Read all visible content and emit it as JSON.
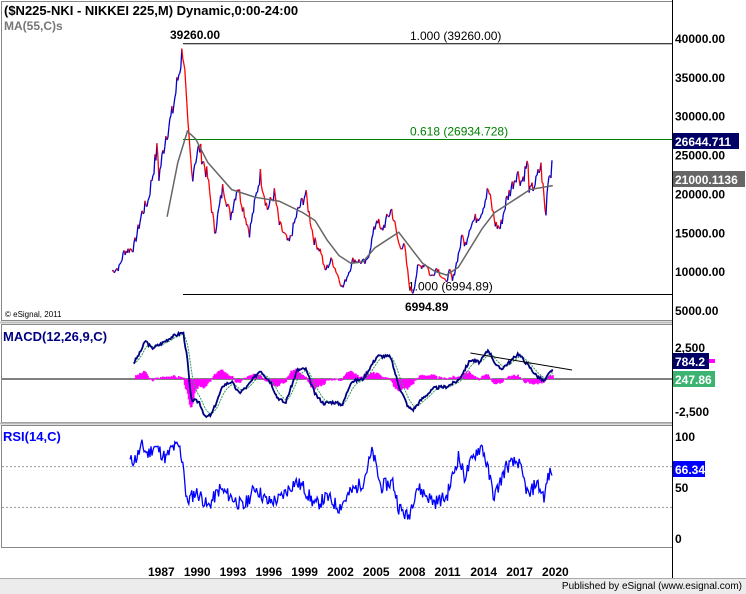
{
  "chart_data": {
    "type": "line",
    "title": "($N225-NKI - NIKKEI 225,M) Dynamic,0:00-24:00",
    "ma_label": "MA(55,C)s",
    "copyright": "© eSignal, 2011",
    "price_ylim": [
      5000,
      40000
    ],
    "price_ticks": [
      "40000.00",
      "35000.00",
      "30000.00",
      "25000.00",
      "20000.00",
      "15000.00",
      "10000.00",
      "5000.00"
    ],
    "price_tick_values": [
      40000,
      35000,
      30000,
      25000,
      20000,
      15000,
      10000,
      5000
    ],
    "x_ticks": [
      "1987",
      "1990",
      "1993",
      "1996",
      "1999",
      "2002",
      "2005",
      "2008",
      "2011",
      "2014",
      "2017",
      "2020"
    ],
    "x_range": [
      1984,
      2021
    ],
    "fib": [
      {
        "level": "1.000 (39260.00)",
        "value": 39260,
        "color": "#000000"
      },
      {
        "level": "0.618 (26934.728)",
        "value": 26934.728,
        "color": "#008000"
      },
      {
        "level": "1.000 (6994.89)",
        "value": 6994.89,
        "color": "#000000"
      }
    ],
    "high_label": "39260.00",
    "low_label": "6994.89",
    "last_price": "26644.711",
    "last_ma": "21000.1136",
    "price": [
      [
        1984.0,
        10000
      ],
      [
        1984.6,
        10500
      ],
      [
        1985,
        12500
      ],
      [
        1985.8,
        13000
      ],
      [
        1986.5,
        17500
      ],
      [
        1987.0,
        19000
      ],
      [
        1987.8,
        26000
      ],
      [
        1987.9,
        22000
      ],
      [
        1988.5,
        27500
      ],
      [
        1989.0,
        30000
      ],
      [
        1989.95,
        38900
      ],
      [
        1990.3,
        29000
      ],
      [
        1990.7,
        22000
      ],
      [
        1990.9,
        24000
      ],
      [
        1991.3,
        26000
      ],
      [
        1992.0,
        22000
      ],
      [
        1992.6,
        15000
      ],
      [
        1993.3,
        21000
      ],
      [
        1993.9,
        17000
      ],
      [
        1994.5,
        21000
      ],
      [
        1995.5,
        15000
      ],
      [
        1996.4,
        22500
      ],
      [
        1997.0,
        18000
      ],
      [
        1997.6,
        20000
      ],
      [
        1998.0,
        16000
      ],
      [
        1998.8,
        13500
      ],
      [
        1999.5,
        17500
      ],
      [
        2000.2,
        20000
      ],
      [
        2000.9,
        14000
      ],
      [
        2001.5,
        12500
      ],
      [
        2001.8,
        10000
      ],
      [
        2002.4,
        11500
      ],
      [
        2003.3,
        7800
      ],
      [
        2004.2,
        11500
      ],
      [
        2005.3,
        11000
      ],
      [
        2006.2,
        17000
      ],
      [
        2006.5,
        15000
      ],
      [
        2007.4,
        18000
      ],
      [
        2008.0,
        13500
      ],
      [
        2008.5,
        13000
      ],
      [
        2008.9,
        8000
      ],
      [
        2009.2,
        7200
      ],
      [
        2009.6,
        10500
      ],
      [
        2010.3,
        11000
      ],
      [
        2010.7,
        9200
      ],
      [
        2011.2,
        10500
      ],
      [
        2011.9,
        8500
      ],
      [
        2012.3,
        10000
      ],
      [
        2012.5,
        8700
      ],
      [
        2013.4,
        15000
      ],
      [
        2013.5,
        13000
      ],
      [
        2014.0,
        16000
      ],
      [
        2014.9,
        17500
      ],
      [
        2015.5,
        20500
      ],
      [
        2016.1,
        16000
      ],
      [
        2016.5,
        15500
      ],
      [
        2017.0,
        19000
      ],
      [
        2017.9,
        22700
      ],
      [
        2018.3,
        21500
      ],
      [
        2018.8,
        24000
      ],
      [
        2018.95,
        20000
      ],
      [
        2019.5,
        21500
      ],
      [
        2019.9,
        23600
      ],
      [
        2020.2,
        19000
      ],
      [
        2020.3,
        16500
      ],
      [
        2020.5,
        22000
      ],
      [
        2020.8,
        23000
      ],
      [
        2020.9,
        26644.711
      ]
    ],
    "ma55": [
      [
        1988.6,
        17000
      ],
      [
        1989.5,
        24000
      ],
      [
        1990.3,
        28000
      ],
      [
        1991,
        27000
      ],
      [
        1992,
        24000
      ],
      [
        1994,
        20500
      ],
      [
        1996,
        19500
      ],
      [
        1998,
        19000
      ],
      [
        2000,
        17500
      ],
      [
        2001,
        16500
      ],
      [
        2002,
        14000
      ],
      [
        2003,
        12000
      ],
      [
        2004,
        11000
      ],
      [
        2005,
        11200
      ],
      [
        2006,
        13000
      ],
      [
        2008,
        15000
      ],
      [
        2009,
        13000
      ],
      [
        2010,
        11000
      ],
      [
        2011,
        10000
      ],
      [
        2012,
        9500
      ],
      [
        2013,
        10500
      ],
      [
        2014,
        13000
      ],
      [
        2015,
        15500
      ],
      [
        2016,
        17500
      ],
      [
        2017,
        18500
      ],
      [
        2018,
        19500
      ],
      [
        2019,
        20500
      ],
      [
        2020.9,
        21000.1136
      ]
    ],
    "macd": {
      "label": "MACD(12,26,9,C)",
      "ticks": [
        "2,500",
        "-2,500"
      ],
      "tick_values": [
        2500,
        -2500
      ],
      "last_macd": "784.2",
      "last_signal": "247.86",
      "values": [
        [
          1985.8,
          1250
        ],
        [
          1986.3,
          2000
        ],
        [
          1986.8,
          3000
        ],
        [
          1987.3,
          2400
        ],
        [
          1988,
          2700
        ],
        [
          1989,
          3300
        ],
        [
          1989.95,
          3650
        ],
        [
          1990.3,
          1500
        ],
        [
          1990.6,
          -1600
        ],
        [
          1991.3,
          -1800
        ],
        [
          1991.8,
          -3000
        ],
        [
          1992.3,
          -2800
        ],
        [
          1993.3,
          -500
        ],
        [
          1994,
          -200
        ],
        [
          1994.6,
          -1100
        ],
        [
          1995.3,
          -600
        ],
        [
          1996.4,
          700
        ],
        [
          1997.3,
          -300
        ],
        [
          1997.8,
          -1400
        ],
        [
          1998.5,
          -1900
        ],
        [
          1999.5,
          700
        ],
        [
          2000.2,
          800
        ],
        [
          2001,
          -1200
        ],
        [
          2001.7,
          -1900
        ],
        [
          2002.5,
          -1800
        ],
        [
          2003.3,
          -2000
        ],
        [
          2004,
          -200
        ],
        [
          2005,
          0
        ],
        [
          2006.2,
          1800
        ],
        [
          2007.3,
          1750
        ],
        [
          2008,
          -500
        ],
        [
          2008.8,
          -2200
        ],
        [
          2009.2,
          -2400
        ],
        [
          2010,
          -1500
        ],
        [
          2011,
          -700
        ],
        [
          2012,
          -600
        ],
        [
          2013,
          -100
        ],
        [
          2014,
          1500
        ],
        [
          2014.8,
          1300
        ],
        [
          2015.5,
          2300
        ],
        [
          2016.2,
          1000
        ],
        [
          2016.6,
          800
        ],
        [
          2017.5,
          1500
        ],
        [
          2018,
          2000
        ],
        [
          2018.9,
          1000
        ],
        [
          2019.5,
          300
        ],
        [
          2020.2,
          -200
        ],
        [
          2020.5,
          300
        ],
        [
          2020.9,
          784.2
        ]
      ]
    },
    "rsi": {
      "label": "RSI(14,C)",
      "ticks": [
        "100",
        "50",
        "0"
      ],
      "tick_values": [
        100,
        50,
        0
      ],
      "levels": [
        70,
        30
      ],
      "last": "66.34",
      "values": [
        [
          1985.5,
          75
        ],
        [
          1986,
          78
        ],
        [
          1986.5,
          90
        ],
        [
          1987,
          82
        ],
        [
          1987.5,
          90
        ],
        [
          1988,
          85
        ],
        [
          1988.5,
          78
        ],
        [
          1989,
          88
        ],
        [
          1989.6,
          90
        ],
        [
          1990,
          70
        ],
        [
          1990.2,
          35
        ],
        [
          1991,
          45
        ],
        [
          1991.5,
          40
        ],
        [
          1992,
          30
        ],
        [
          1993,
          48
        ],
        [
          1994,
          40
        ],
        [
          1995,
          30
        ],
        [
          1996,
          50
        ],
        [
          1997,
          35
        ],
        [
          1998,
          38
        ],
        [
          1999.3,
          55
        ],
        [
          2000,
          50
        ],
        [
          2001,
          32
        ],
        [
          2002,
          40
        ],
        [
          2003,
          30
        ],
        [
          2004,
          45
        ],
        [
          2005,
          55
        ],
        [
          2005.8,
          85
        ],
        [
          2006.5,
          50
        ],
        [
          2007.5,
          55
        ],
        [
          2008,
          30
        ],
        [
          2008.8,
          20
        ],
        [
          2009.5,
          50
        ],
        [
          2010,
          45
        ],
        [
          2011,
          35
        ],
        [
          2012,
          40
        ],
        [
          2013,
          80
        ],
        [
          2013.5,
          60
        ],
        [
          2014.5,
          85
        ],
        [
          2015,
          90
        ],
        [
          2016,
          40
        ],
        [
          2017,
          70
        ],
        [
          2018,
          75
        ],
        [
          2018.9,
          40
        ],
        [
          2019.5,
          55
        ],
        [
          2020.2,
          40
        ],
        [
          2020.5,
          60
        ],
        [
          2020.9,
          66.34
        ]
      ]
    },
    "colors": {
      "up": "#0000cc",
      "down": "#ff0000",
      "ma": "#666666",
      "macd": "#000080",
      "signal": "#2e9e5a",
      "hist": "#ff00ff",
      "rsi": "#0000ff",
      "fib618": "#008000"
    }
  },
  "footer": "Published by eSignal (www.esignal.com)"
}
